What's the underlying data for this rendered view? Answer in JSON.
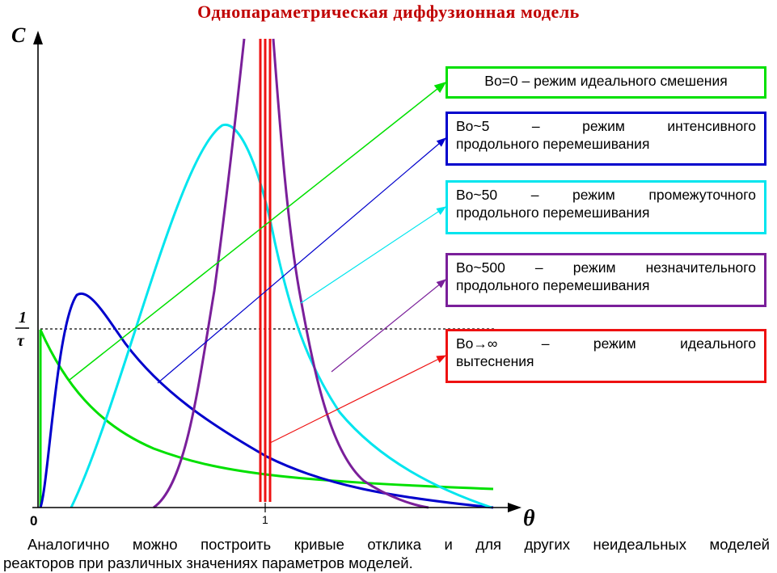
{
  "title": "Однопараметрическая диффузионная модель",
  "axes": {
    "y_label": "C",
    "x_label": "θ",
    "origin_label": "0",
    "x_tick": "1",
    "y_tick_numerator": "1",
    "y_tick_denominator": "τ"
  },
  "labels": [
    {
      "line1": "Bo=0 – режим идеального смешения",
      "line2": "",
      "color": "#00e000"
    },
    {
      "line1": "Bo~5 – режим интенсивного",
      "line2": "продольного перемешивания",
      "color": "#0000cc"
    },
    {
      "line1": "Bo~50 – режим промежуточного",
      "line2": "продольного перемешивания",
      "color": "#00e5ee"
    },
    {
      "line1": "Bo~500 – режим незначительного",
      "line2": "продольного перемешивания",
      "color": "#7a1f9a"
    },
    {
      "line1": "Bo→∞ – режим идеального",
      "line2": "вытеснения",
      "color": "#ee1111"
    }
  ],
  "footer": {
    "line1": "Аналогично можно построить кривые отклика и для других неидеальных моделей",
    "line2": "реакторов при различных значениях параметров моделей."
  }
}
